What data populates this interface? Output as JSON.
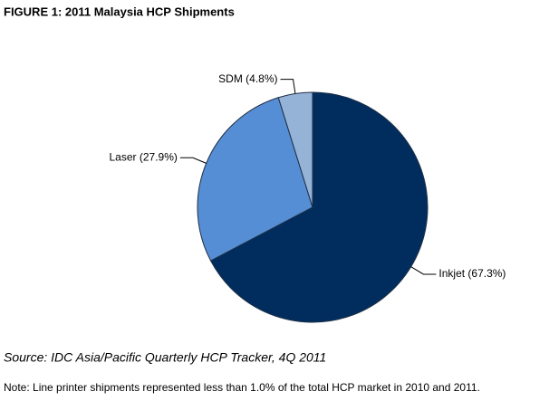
{
  "chart_data": {
    "type": "pie",
    "title": "FIGURE 1: 2011 Malaysia HCP Shipments",
    "labels": [
      "Inkjet (67.3%)",
      "Laser (27.9%)",
      "SDM (4.8%)"
    ],
    "values": [
      67.3,
      27.9,
      4.8
    ],
    "colors": [
      "#002d5e",
      "#558ed5",
      "#95b3d7"
    ],
    "source": "Source: IDC Asia/Pacific Quarterly HCP Tracker, 4Q 2011",
    "note": "Note: Line printer shipments represented less than 1.0% of the total HCP market in 2010 and 2011."
  }
}
